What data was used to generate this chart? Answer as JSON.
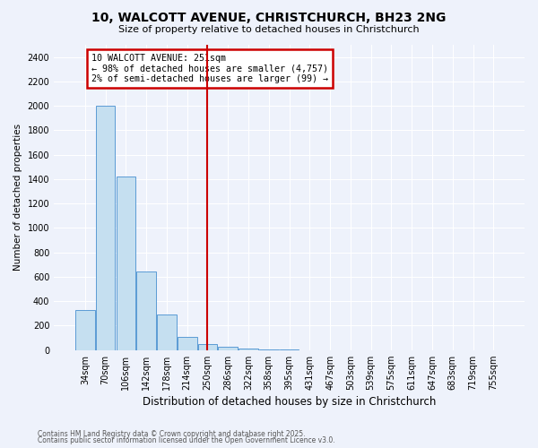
{
  "title_line1": "10, WALCOTT AVENUE, CHRISTCHURCH, BH23 2NG",
  "title_line2": "Size of property relative to detached houses in Christchurch",
  "xlabel": "Distribution of detached houses by size in Christchurch",
  "ylabel": "Number of detached properties",
  "categories": [
    "34sqm",
    "70sqm",
    "106sqm",
    "142sqm",
    "178sqm",
    "214sqm",
    "250sqm",
    "286sqm",
    "322sqm",
    "358sqm",
    "395sqm",
    "431sqm",
    "467sqm",
    "503sqm",
    "539sqm",
    "575sqm",
    "611sqm",
    "647sqm",
    "683sqm",
    "719sqm",
    "755sqm"
  ],
  "values": [
    330,
    2000,
    1420,
    640,
    290,
    110,
    50,
    30,
    15,
    5,
    2,
    1,
    0,
    0,
    0,
    0,
    0,
    0,
    0,
    0,
    0
  ],
  "bar_color": "#c5dff0",
  "bar_edge_color": "#5b9bd5",
  "red_line_index": 6,
  "annotation_title": "10 WALCOTT AVENUE: 251sqm",
  "annotation_line1": "← 98% of detached houses are smaller (4,757)",
  "annotation_line2": "2% of semi-detached houses are larger (99) →",
  "annotation_box_color": "#ffffff",
  "annotation_box_edge": "#cc0000",
  "red_line_color": "#cc0000",
  "ylim": [
    0,
    2500
  ],
  "yticks": [
    0,
    200,
    400,
    600,
    800,
    1000,
    1200,
    1400,
    1600,
    1800,
    2000,
    2200,
    2400
  ],
  "background_color": "#eef2fb",
  "footer_line1": "Contains HM Land Registry data © Crown copyright and database right 2025.",
  "footer_line2": "Contains public sector information licensed under the Open Government Licence v3.0."
}
